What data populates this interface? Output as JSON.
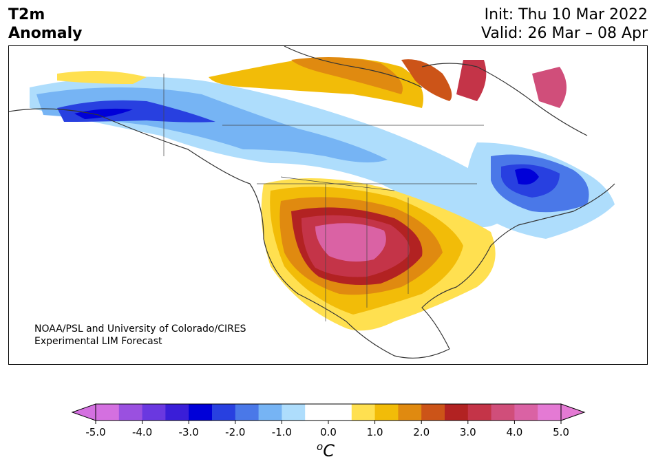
{
  "header": {
    "title_line1": "T2m",
    "title_line2": "Anomaly",
    "init": "Init: Thu 10 Mar 2022",
    "valid": "Valid: 26 Mar – 08 Apr"
  },
  "credit": {
    "line1": "NOAA/PSL and University of Colorado/CIRES",
    "line2": "Experimental LIM Forecast"
  },
  "colorbar": {
    "unit": "C",
    "unit_prefix": "o",
    "tick_labels": [
      "-5.0",
      "-4.0",
      "-3.0",
      "-2.0",
      "-1.0",
      "0.0",
      "1.0",
      "2.0",
      "3.0",
      "4.0",
      "5.0"
    ],
    "colors": [
      "#d470e0",
      "#9a50e0",
      "#6a38e0",
      "#3a1ed8",
      "#0000d8",
      "#2840e0",
      "#4a78e8",
      "#76b4f4",
      "#aeddfc",
      "#ffffff",
      "#ffffff",
      "#ffe050",
      "#f2bc08",
      "#e08a10",
      "#cc5418",
      "#b22222",
      "#c43448",
      "#d04e7a",
      "#da62a4",
      "#e47ad4"
    ],
    "under_color": "#d470e0",
    "over_color": "#e47ad4"
  },
  "map": {
    "anomaly_regions": [
      {
        "name": "southwest-warm-core",
        "value_c": 4.0
      },
      {
        "name": "great-lakes-cold",
        "value_c": -3.0
      },
      {
        "name": "alaska-cold",
        "value_c": -2.5
      },
      {
        "name": "greenland-warm",
        "value_c": 3.5
      }
    ]
  }
}
